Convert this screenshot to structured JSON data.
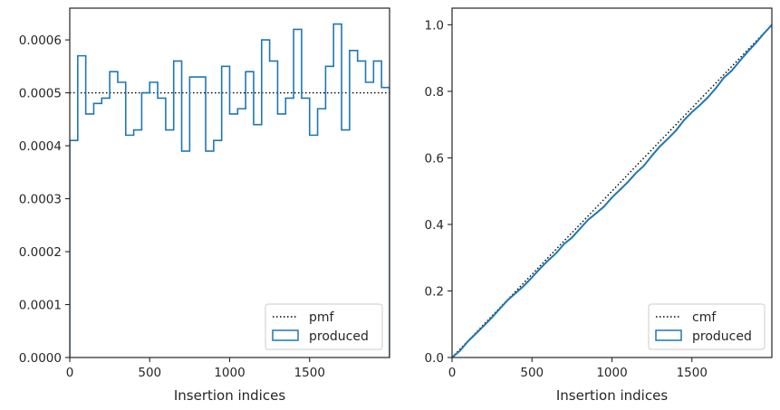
{
  "chart_data": [
    {
      "type": "histogram-step",
      "xlabel": "Insertion indices",
      "ylabel": "",
      "xlim": [
        0,
        2000
      ],
      "ylim": [
        0,
        0.00066
      ],
      "xticks": [
        0,
        500,
        1000,
        1500
      ],
      "xtick_labels": [
        "0",
        "500",
        "1000",
        "1500"
      ],
      "yticks": [
        0,
        0.0001,
        0.0002,
        0.0003,
        0.0004,
        0.0005,
        0.0006
      ],
      "ytick_labels": [
        "0.0000",
        "0.0001",
        "0.0002",
        "0.0003",
        "0.0004",
        "0.0005",
        "0.0006"
      ],
      "reference_line": {
        "name": "pmf",
        "value": 0.0005,
        "style": "dotted",
        "color": "#000000"
      },
      "series": [
        {
          "name": "produced",
          "color": "#1f77b4",
          "bin_edges": [
            0,
            50,
            100,
            150,
            200,
            250,
            300,
            350,
            400,
            450,
            500,
            550,
            600,
            650,
            700,
            750,
            800,
            850,
            900,
            950,
            1000,
            1050,
            1100,
            1150,
            1200,
            1250,
            1300,
            1350,
            1400,
            1450,
            1500,
            1550,
            1600,
            1650,
            1700,
            1750,
            1800,
            1850,
            1900,
            1950,
            2000
          ],
          "values": [
            0.00041,
            0.00057,
            0.00046,
            0.00048,
            0.00049,
            0.00054,
            0.00052,
            0.00042,
            0.00043,
            0.0005,
            0.00052,
            0.00049,
            0.00043,
            0.00056,
            0.00039,
            0.00053,
            0.00053,
            0.00039,
            0.00041,
            0.00055,
            0.00046,
            0.00047,
            0.00054,
            0.00044,
            0.0006,
            0.00056,
            0.00046,
            0.00049,
            0.00062,
            0.00049,
            0.00042,
            0.00047,
            0.00055,
            0.00063,
            0.00043,
            0.00058,
            0.00056,
            0.00052,
            0.00056,
            0.00051
          ]
        }
      ],
      "legend": {
        "position": "lower-right",
        "entries": [
          "pmf",
          "produced"
        ]
      }
    },
    {
      "type": "line",
      "xlabel": "Insertion indices",
      "ylabel": "",
      "xlim": [
        0,
        2000
      ],
      "ylim": [
        0,
        1.05
      ],
      "xticks": [
        0,
        500,
        1000,
        1500
      ],
      "xtick_labels": [
        "0",
        "500",
        "1000",
        "1500"
      ],
      "yticks": [
        0,
        0.2,
        0.4,
        0.6,
        0.8,
        1.0
      ],
      "ytick_labels": [
        "0.0",
        "0.2",
        "0.4",
        "0.6",
        "0.8",
        "1.0"
      ],
      "reference_line": {
        "name": "cmf",
        "from": [
          0,
          0
        ],
        "to": [
          2000,
          1.0
        ],
        "style": "dotted",
        "color": "#000000"
      },
      "series": [
        {
          "name": "produced",
          "color": "#1f77b4",
          "x": [
            0,
            50,
            100,
            150,
            200,
            250,
            300,
            350,
            400,
            450,
            500,
            550,
            600,
            650,
            700,
            750,
            800,
            850,
            900,
            950,
            1000,
            1050,
            1100,
            1150,
            1200,
            1250,
            1300,
            1350,
            1400,
            1450,
            1500,
            1550,
            1600,
            1650,
            1700,
            1750,
            1800,
            1850,
            1900,
            1950,
            2000
          ],
          "y": [
            0,
            0.0205,
            0.049,
            0.072,
            0.096,
            0.1205,
            0.1475,
            0.1735,
            0.1945,
            0.216,
            0.241,
            0.267,
            0.2915,
            0.313,
            0.341,
            0.3605,
            0.387,
            0.4135,
            0.433,
            0.4535,
            0.481,
            0.504,
            0.5275,
            0.5545,
            0.5765,
            0.6065,
            0.6345,
            0.6575,
            0.682,
            0.713,
            0.7375,
            0.7585,
            0.782,
            0.8095,
            0.841,
            0.8625,
            0.8915,
            0.9195,
            0.9455,
            0.9735,
            1.0
          ]
        }
      ],
      "legend": {
        "position": "lower-right",
        "entries": [
          "cmf",
          "produced"
        ]
      }
    }
  ]
}
